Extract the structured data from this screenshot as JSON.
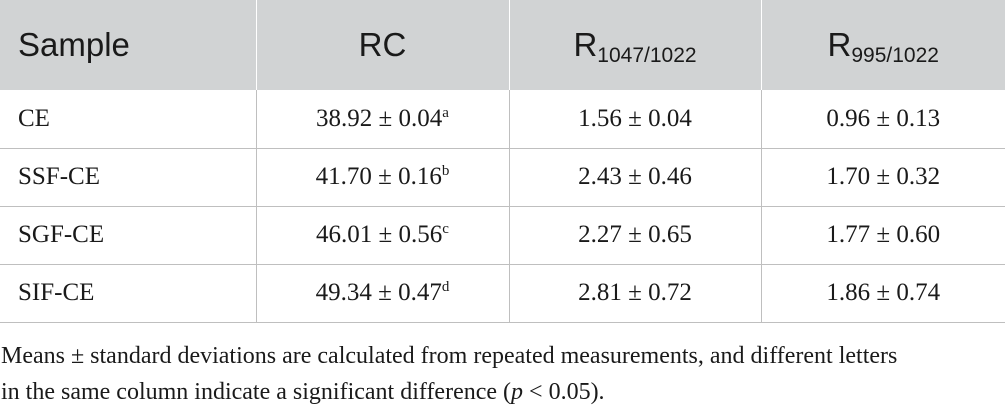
{
  "table": {
    "headers": {
      "sample": "Sample",
      "rc": "RC",
      "r1_base": "R",
      "r1_sub": "1047/1022",
      "r2_base": "R",
      "r2_sub": "995/1022"
    },
    "rows": [
      {
        "sample": "CE",
        "rc": "38.92 ± 0.04",
        "rc_sup": "a",
        "r1": "1.56 ± 0.04",
        "r2": "0.96 ± 0.13"
      },
      {
        "sample": "SSF-CE",
        "rc": "41.70 ± 0.16",
        "rc_sup": "b",
        "r1": "2.43 ± 0.46",
        "r2": "1.70 ± 0.32"
      },
      {
        "sample": "SGF-CE",
        "rc": "46.01 ± 0.56",
        "rc_sup": "c",
        "r1": "2.27 ± 0.65",
        "r2": "1.77 ± 0.60"
      },
      {
        "sample": "SIF-CE",
        "rc": "49.34 ± 0.47",
        "rc_sup": "d",
        "r1": "2.81 ± 0.72",
        "r2": "1.86 ± 0.74"
      }
    ]
  },
  "footnote": {
    "line1": "Means ± standard deviations are calculated from repeated measurements, and different letters",
    "line2_pre": "in the same column indicate a significant difference (",
    "line2_var": "p",
    "line2_post": " < 0.05)."
  }
}
